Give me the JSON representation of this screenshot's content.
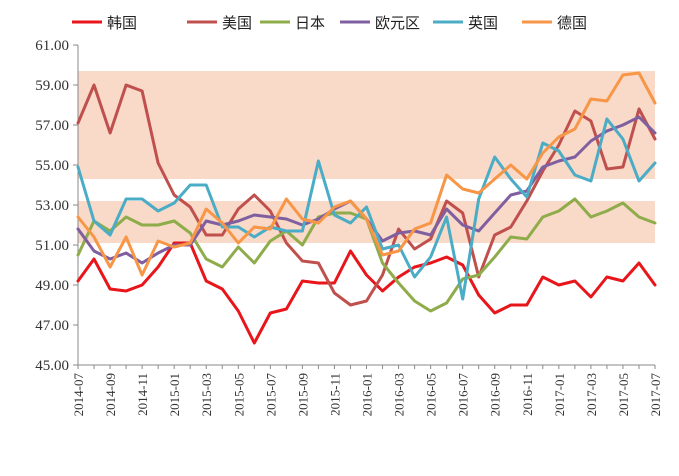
{
  "chart_data": {
    "type": "line",
    "title": "",
    "xlabel": "",
    "ylabel": "",
    "ylim": [
      45,
      61
    ],
    "yticks": [
      "45.00",
      "47.00",
      "49.00",
      "51.00",
      "53.00",
      "55.00",
      "57.00",
      "59.00",
      "61.00"
    ],
    "grid": false,
    "legend_position": "top",
    "x": [
      "2014-07",
      "2014-08",
      "2014-09",
      "2014-10",
      "2014-11",
      "2014-12",
      "2015-01",
      "2015-02",
      "2015-03",
      "2015-04",
      "2015-05",
      "2015-06",
      "2015-07",
      "2015-08",
      "2015-09",
      "2015-10",
      "2015-11",
      "2015-12",
      "2016-01",
      "2016-02",
      "2016-03",
      "2016-04",
      "2016-05",
      "2016-06",
      "2016-07",
      "2016-08",
      "2016-09",
      "2016-10",
      "2016-11",
      "2016-12",
      "2017-01",
      "2017-02",
      "2017-03",
      "2017-04",
      "2017-05",
      "2017-06",
      "2017-07"
    ],
    "xtick_labels": [
      "2014-07",
      "2014-09",
      "2014-11",
      "2015-01",
      "2015-03",
      "2015-05",
      "2015-07",
      "2015-09",
      "2015-11",
      "2016-01",
      "2016-03",
      "2016-05",
      "2016-07",
      "2016-09",
      "2016-11",
      "2017-01",
      "2017-03",
      "2017-05",
      "2017-07"
    ],
    "bands": [
      {
        "from": 51.1,
        "to": 53.2,
        "color": "#f9d9c8"
      },
      {
        "from": 54.3,
        "to": 59.7,
        "color": "#f9d9c8"
      }
    ],
    "series": [
      {
        "name": "韩国",
        "color": "#e8161b",
        "values": [
          49.2,
          50.3,
          48.8,
          48.7,
          49.0,
          49.9,
          51.1,
          51.1,
          49.2,
          48.8,
          47.7,
          46.1,
          47.6,
          47.8,
          49.2,
          49.1,
          49.1,
          50.7,
          49.5,
          48.7,
          49.4,
          49.9,
          50.1,
          50.4,
          50.0,
          48.5,
          47.6,
          48.0,
          48.0,
          49.4,
          49.0,
          49.2,
          48.4,
          49.4,
          49.2,
          50.1,
          49.0
        ]
      },
      {
        "name": "美国",
        "color": "#c0504d",
        "values": [
          57.1,
          59.0,
          56.6,
          59.0,
          58.7,
          55.1,
          53.5,
          52.9,
          51.5,
          51.5,
          52.8,
          53.5,
          52.7,
          51.1,
          50.2,
          50.1,
          48.6,
          48.0,
          48.2,
          49.5,
          51.8,
          50.8,
          51.3,
          53.2,
          52.6,
          49.4,
          51.5,
          51.9,
          53.2,
          54.7,
          56.0,
          57.7,
          57.2,
          54.8,
          54.9,
          57.8,
          56.3
        ]
      },
      {
        "name": "日本",
        "color": "#8fac4b",
        "values": [
          50.5,
          52.2,
          51.7,
          52.4,
          52.0,
          52.0,
          52.2,
          51.6,
          50.3,
          49.9,
          50.9,
          50.1,
          51.2,
          51.7,
          51.0,
          52.4,
          52.6,
          52.6,
          52.3,
          50.1,
          49.1,
          48.2,
          47.7,
          48.1,
          49.3,
          49.5,
          50.4,
          51.4,
          51.3,
          52.4,
          52.7,
          53.3,
          52.4,
          52.7,
          53.1,
          52.4,
          52.1
        ]
      },
      {
        "name": "欧元区",
        "color": "#7f5fa0",
        "values": [
          51.8,
          50.7,
          50.3,
          50.6,
          50.1,
          50.6,
          51.0,
          51.0,
          52.2,
          52.0,
          52.2,
          52.5,
          52.4,
          52.3,
          52.0,
          52.3,
          52.8,
          53.2,
          52.3,
          51.2,
          51.6,
          51.7,
          51.5,
          52.8,
          52.0,
          51.7,
          52.6,
          53.5,
          53.7,
          54.9,
          55.2,
          55.4,
          56.2,
          56.7,
          57.0,
          57.4,
          56.6
        ]
      },
      {
        "name": "英国",
        "color": "#4bacc6",
        "values": [
          54.9,
          52.2,
          51.5,
          53.3,
          53.3,
          52.7,
          53.1,
          54.0,
          54.0,
          51.9,
          51.9,
          51.4,
          51.9,
          51.7,
          51.7,
          55.2,
          52.5,
          52.1,
          52.9,
          50.8,
          51.0,
          49.4,
          50.4,
          52.4,
          48.3,
          53.3,
          55.4,
          54.3,
          53.4,
          56.1,
          55.7,
          54.5,
          54.2,
          57.3,
          56.3,
          54.2,
          55.1
        ]
      },
      {
        "name": "德国",
        "color": "#f79646",
        "values": [
          52.4,
          51.4,
          49.9,
          51.4,
          49.5,
          51.2,
          50.9,
          51.1,
          52.8,
          52.1,
          51.1,
          51.9,
          51.8,
          53.3,
          52.3,
          52.1,
          52.9,
          53.2,
          52.3,
          50.5,
          50.7,
          51.8,
          52.1,
          54.5,
          53.8,
          53.6,
          54.3,
          55.0,
          54.3,
          55.6,
          56.4,
          56.8,
          58.3,
          58.2,
          59.5,
          59.6,
          58.1
        ]
      }
    ]
  }
}
